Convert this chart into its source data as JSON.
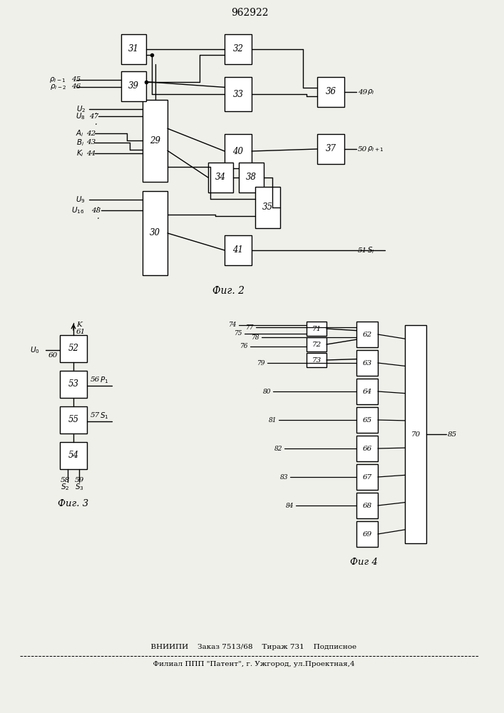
{
  "title": "962922",
  "fig2_label": "Фиг. 2",
  "fig3_label": "Фиг. 3",
  "fig4_label": "Фиг 4",
  "footer_line1": "  ВНИИПИ    Заказ 7513/68    Тираж 731    Подписное",
  "footer_line2": "  Филиал ППП \"Патент\", г. Ужгород, ул.Проектная,4",
  "bg_color": "#f0f0eb"
}
